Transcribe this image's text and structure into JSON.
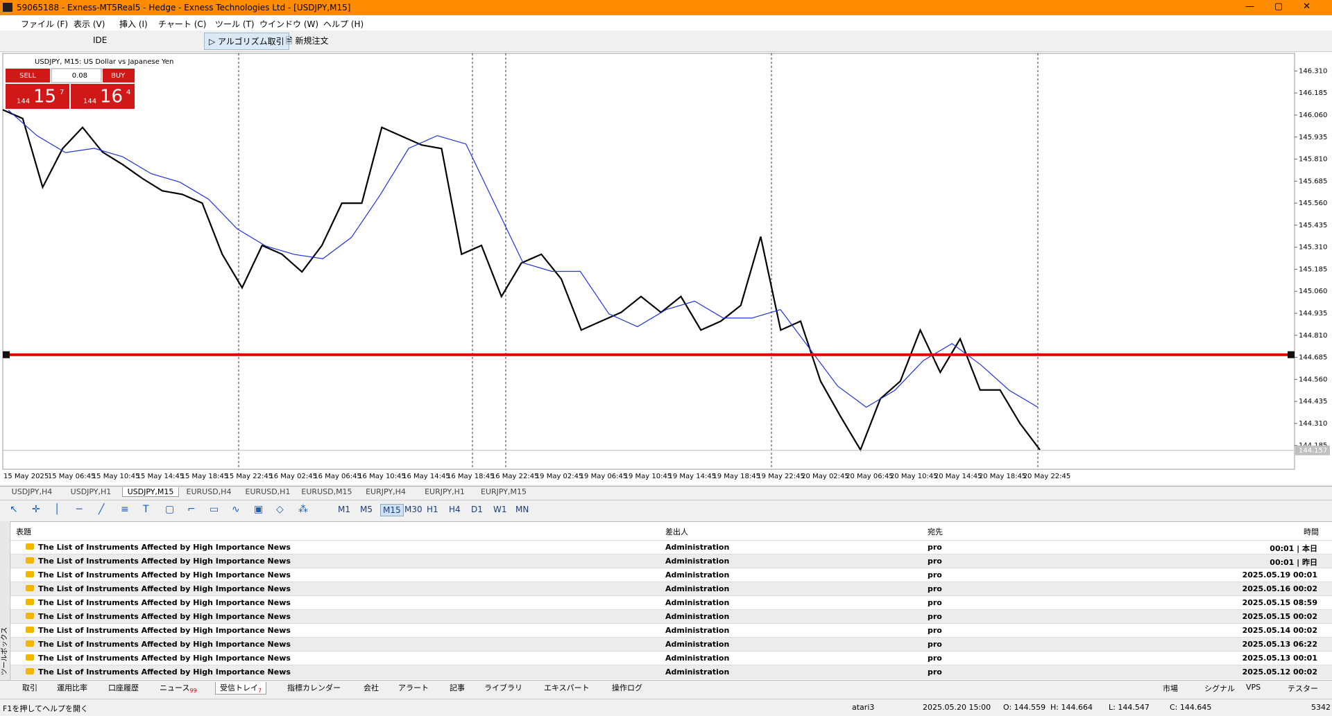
{
  "title_bar": "59065188 - Exness-MT5Real5 - Hedge - Exness Technologies Ltd - [USDJPY,M15]",
  "menu": [
    "ファイル (F)",
    "表示 (V)",
    "挿入 (I)",
    "チャート (C)",
    "ツール (T)",
    "ウインドウ (W)",
    "ヘルプ (H)"
  ],
  "toolbar": {
    "ide": "IDE",
    "algo": "アルゴリズム取引",
    "new_order": "新規注文"
  },
  "chart": {
    "symbol_label": "USDJPY, M15:  US Dollar vs Japanese Yen",
    "trade_panel": {
      "sell": "SELL",
      "buy": "BUY",
      "volume": "0.08",
      "bid_big": "144",
      "bid_main": "15",
      "bid_small": "7",
      "ask_big": "144",
      "ask_main": "16",
      "ask_small": "4"
    },
    "ylim": [
      144.05,
      146.41
    ],
    "yticks": [
      {
        "value": 146.31,
        "label": "146.310"
      },
      {
        "value": 146.185,
        "label": "146.185"
      },
      {
        "value": 146.06,
        "label": "146.060"
      },
      {
        "value": 145.935,
        "label": "145.935"
      },
      {
        "value": 145.81,
        "label": "145.810"
      },
      {
        "value": 145.685,
        "label": "145.685"
      },
      {
        "value": 145.56,
        "label": "145.560"
      },
      {
        "value": 145.435,
        "label": "145.435"
      },
      {
        "value": 145.31,
        "label": "145.310"
      },
      {
        "value": 145.185,
        "label": "145.185"
      },
      {
        "value": 145.06,
        "label": "145.060"
      },
      {
        "value": 144.935,
        "label": "144.935"
      },
      {
        "value": 144.81,
        "label": "144.810"
      },
      {
        "value": 144.685,
        "label": "144.685"
      },
      {
        "value": 144.56,
        "label": "144.560"
      },
      {
        "value": 144.435,
        "label": "144.435"
      },
      {
        "value": 144.31,
        "label": "144.310"
      },
      {
        "value": 144.185,
        "label": "144.185"
      }
    ],
    "current_price": 144.157,
    "hline": 144.7,
    "hline_color": "#e00000",
    "time_labels": [
      "15 May 2025",
      "15 May 06:45",
      "15 May 10:45",
      "15 May 14:45",
      "15 May 18:45",
      "15 May 22:45",
      "16 May 02:45",
      "16 May 06:45",
      "16 May 10:45",
      "16 May 14:45",
      "16 May 18:45",
      "16 May 22:45",
      "19 May 02:45",
      "19 May 06:45",
      "19 May 10:45",
      "19 May 14:45",
      "19 May 18:45",
      "19 May 22:45",
      "20 May 02:45",
      "20 May 06:45",
      "20 May 10:45",
      "20 May 14:45",
      "20 May 18:45",
      "20 May 22:45"
    ],
    "price_color": "#000000",
    "closes": [
      146.09,
      146.04,
      145.65,
      145.87,
      145.99,
      145.85,
      145.78,
      145.7,
      145.63,
      145.61,
      145.56,
      145.27,
      145.08,
      145.32,
      145.27,
      145.17,
      145.32,
      145.56,
      145.56,
      145.99,
      145.94,
      145.89,
      145.87,
      145.27,
      145.32,
      145.03,
      145.22,
      145.27,
      145.13,
      144.84,
      144.89,
      144.94,
      145.03,
      144.94,
      145.03,
      144.84,
      144.89,
      144.98,
      145.37,
      144.84,
      144.89,
      144.55,
      144.35,
      144.16,
      144.45,
      144.55,
      144.84,
      144.6,
      144.79,
      144.5,
      144.5,
      144.31,
      144.16
    ],
    "ma_color": "#2030e0",
    "ma": [
      146.088,
      145.943,
      145.847,
      145.871,
      145.823,
      145.727,
      145.679,
      145.583,
      145.414,
      145.317,
      145.269,
      145.245,
      145.366,
      145.606,
      145.871,
      145.943,
      145.896,
      145.558,
      145.221,
      145.173,
      145.173,
      144.932,
      144.859,
      144.956,
      145.004,
      144.908,
      144.908,
      144.956,
      144.739,
      144.522,
      144.402,
      144.498,
      144.667,
      144.763,
      144.643,
      144.498,
      144.402
    ]
  },
  "chart_tabs": [
    "USDJPY,H4",
    "USDJPY,H1",
    "USDJPY,M15",
    "EURUSD,H4",
    "EURUSD,H1",
    "EURUSD,M15",
    "EURJPY,H4",
    "EURJPY,H1",
    "EURJPY,M15"
  ],
  "timeframes": [
    "M1",
    "M5",
    "M15",
    "M30",
    "H1",
    "H4",
    "D1",
    "W1",
    "MN"
  ],
  "mailbox": {
    "headers": [
      "表題",
      "差出人",
      "宛先",
      "時間"
    ],
    "rows": [
      [
        "The List of Instruments Affected by High Importance News",
        "Administration",
        "pro",
        "00:01 | 本日"
      ],
      [
        "The List of Instruments Affected by High Importance News",
        "Administration",
        "pro",
        "00:01 | 昨日"
      ],
      [
        "The List of Instruments Affected by High Importance News",
        "Administration",
        "pro",
        "2025.05.19 00:01"
      ],
      [
        "The List of Instruments Affected by High Importance News",
        "Administration",
        "pro",
        "2025.05.16 00:02"
      ],
      [
        "The List of Instruments Affected by High Importance News",
        "Administration",
        "pro",
        "2025.05.15 08:59"
      ],
      [
        "The List of Instruments Affected by High Importance News",
        "Administration",
        "pro",
        "2025.05.15 00:02"
      ],
      [
        "The List of Instruments Affected by High Importance News",
        "Administration",
        "pro",
        "2025.05.14 00:02"
      ],
      [
        "The List of Instruments Affected by High Importance News",
        "Administration",
        "pro",
        "2025.05.13 06:22"
      ],
      [
        "The List of Instruments Affected by High Importance News",
        "Administration",
        "pro",
        "2025.05.13 00:01"
      ],
      [
        "The List of Instruments Affected by High Importance News",
        "Administration",
        "pro",
        "2025.05.12 00:02"
      ]
    ]
  },
  "toolbox_label": "ツールボックス",
  "bottom_tabs": [
    {
      "label": "取引"
    },
    {
      "label": "運用比率"
    },
    {
      "label": "口座履歴"
    },
    {
      "label": "ニュース",
      "badge": "99"
    },
    {
      "label": "受信トレイ",
      "badge": "7"
    },
    {
      "label": "指標カレンダー"
    },
    {
      "label": "会社"
    },
    {
      "label": "アラート"
    },
    {
      "label": "記事"
    },
    {
      "label": "ライブラリ"
    },
    {
      "label": "エキスパート"
    },
    {
      "label": "操作ログ"
    }
  ],
  "bottom_right": [
    "市場",
    "シグナル",
    "VPS",
    "テスター"
  ],
  "status": {
    "help": "F1を押してヘルプを開く",
    "profile": "atari3",
    "time": "2025.05.20 15:00",
    "open": "O: 144.559",
    "high": "H: 144.664",
    "low": "L: 144.547",
    "close": "C: 144.645",
    "traffic": "5342"
  }
}
